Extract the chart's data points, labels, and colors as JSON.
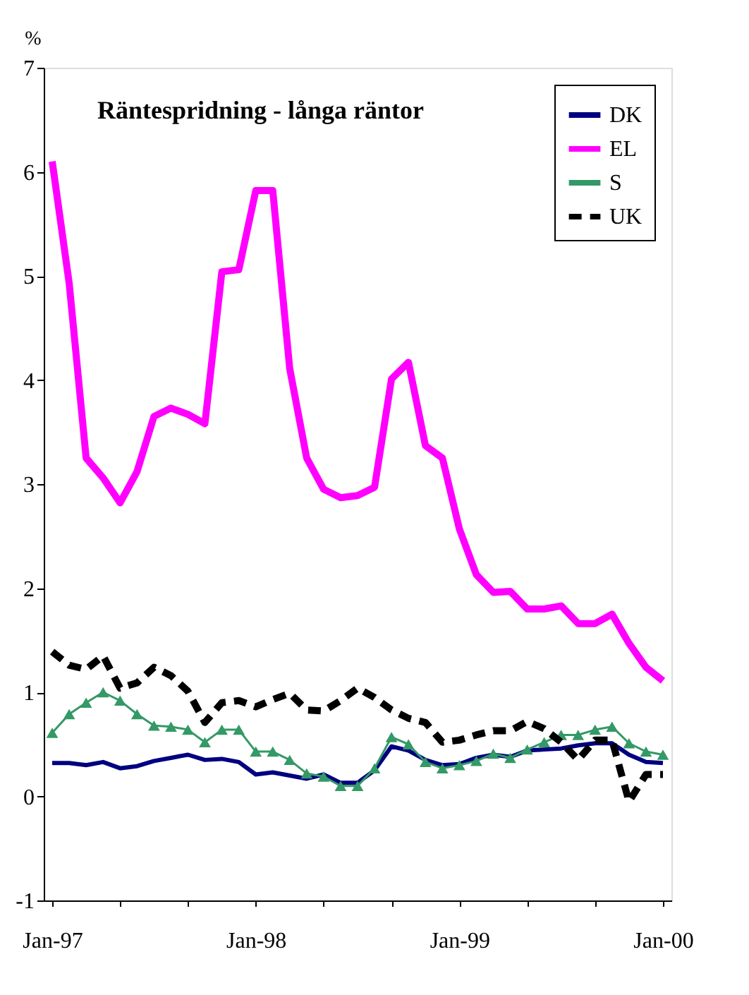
{
  "chart_data": {
    "type": "line",
    "title": "Räntespridning - långa räntor",
    "ylabel": "%",
    "categories": [
      "Jan-97",
      null,
      null,
      null,
      null,
      null,
      null,
      null,
      null,
      null,
      null,
      null,
      "Jan-98",
      null,
      null,
      null,
      null,
      null,
      null,
      null,
      null,
      null,
      null,
      null,
      "Jan-99",
      null,
      null,
      null,
      null,
      null,
      null,
      null,
      null,
      null,
      null,
      null,
      "Jan-00"
    ],
    "ylim": [
      -1,
      7
    ],
    "yticks": [
      -1,
      0,
      1,
      2,
      3,
      4,
      5,
      6,
      7
    ],
    "grid": false,
    "legend": "top right",
    "series": [
      {
        "name": "DK",
        "color": "#000080",
        "line_style": "solid",
        "marker": "none",
        "values": [
          0.32,
          0.32,
          0.3,
          0.33,
          0.27,
          0.29,
          0.34,
          0.37,
          0.4,
          0.35,
          0.36,
          0.33,
          0.21,
          0.23,
          0.2,
          0.17,
          0.21,
          0.13,
          0.13,
          0.25,
          0.48,
          0.44,
          0.35,
          0.3,
          0.31,
          0.37,
          0.4,
          0.38,
          0.44,
          0.45,
          0.46,
          0.49,
          0.51,
          0.51,
          0.4,
          0.33,
          0.32
        ]
      },
      {
        "name": "EL",
        "color": "#ff00ff",
        "line_style": "solid",
        "marker": "none",
        "values": [
          6.1,
          4.93,
          3.25,
          3.06,
          2.82,
          3.12,
          3.65,
          3.73,
          3.67,
          3.58,
          5.04,
          5.06,
          5.82,
          5.82,
          4.11,
          3.25,
          2.95,
          2.87,
          2.89,
          2.97,
          4.01,
          4.17,
          3.37,
          3.25,
          2.57,
          2.13,
          1.96,
          1.97,
          1.8,
          1.8,
          1.83,
          1.66,
          1.66,
          1.75,
          1.47,
          1.24,
          1.11
        ]
      },
      {
        "name": "S",
        "color": "#339966",
        "line_style": "solid",
        "marker": "triangle",
        "values": [
          0.61,
          0.79,
          0.9,
          1.0,
          0.92,
          0.79,
          0.68,
          0.67,
          0.64,
          0.52,
          0.64,
          0.64,
          0.43,
          0.43,
          0.35,
          0.22,
          0.19,
          0.1,
          0.1,
          0.27,
          0.57,
          0.5,
          0.33,
          0.27,
          0.3,
          0.34,
          0.41,
          0.37,
          0.45,
          0.52,
          0.59,
          0.59,
          0.64,
          0.67,
          0.51,
          0.43,
          0.4
        ]
      },
      {
        "name": "UK",
        "color": "#000000",
        "line_style": "dashed",
        "marker": "none",
        "values": [
          1.39,
          1.26,
          1.22,
          1.35,
          1.04,
          1.09,
          1.24,
          1.16,
          1.01,
          0.71,
          0.9,
          0.92,
          0.86,
          0.93,
          0.99,
          0.83,
          0.82,
          0.92,
          1.04,
          0.95,
          0.83,
          0.75,
          0.71,
          0.52,
          0.54,
          0.59,
          0.63,
          0.63,
          0.72,
          0.65,
          0.52,
          0.35,
          0.54,
          0.54,
          -0.05,
          0.21,
          0.21
        ]
      }
    ]
  }
}
